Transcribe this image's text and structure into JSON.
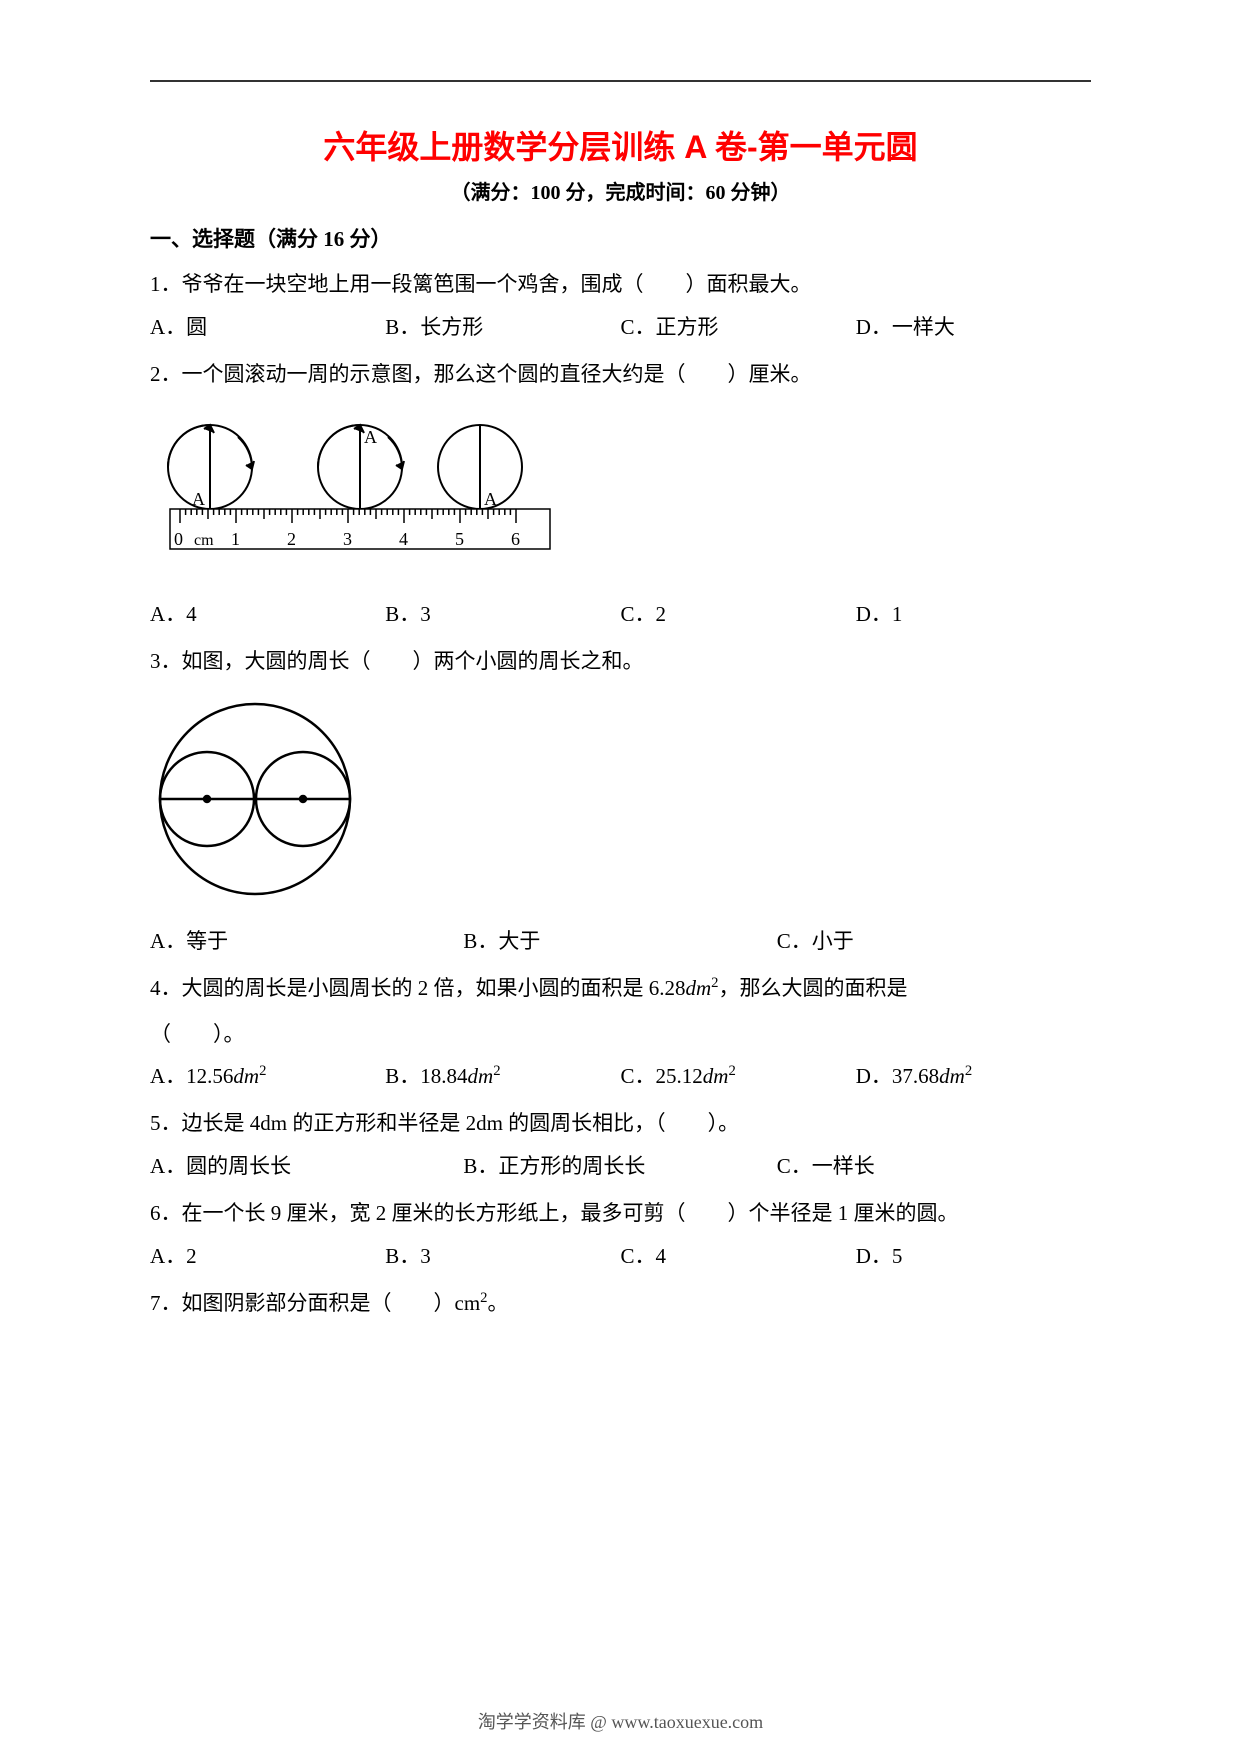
{
  "title": "六年级上册数学分层训练 A 卷-第一单元圆",
  "subtitle": "（满分：100 分，完成时间：60 分钟）",
  "section1": "一、选择题（满分 16 分）",
  "q1": {
    "text": "1．爷爷在一块空地上用一段篱笆围一个鸡舍，围成（　　）面积最大。",
    "a": "A．圆",
    "b": "B．长方形",
    "c": "C．正方形",
    "d": "D．一样大"
  },
  "q2": {
    "text": "2．一个圆滚动一周的示意图，那么这个圆的直径大约是（　　）厘米。",
    "a": "A．4",
    "b": "B．3",
    "c": "C．2",
    "d": "D．1",
    "figure": {
      "ruler_label": "0 cm",
      "ruler_max": 6,
      "circle_label": "A",
      "colors": {
        "stroke": "#000000",
        "bg": "#ffffff"
      }
    }
  },
  "q3": {
    "text": "3．如图，大圆的周长（　　）两个小圆的周长之和。",
    "a": "A．等于",
    "b": "B．大于",
    "c": "C．小于",
    "figure": {
      "stroke": "#000000"
    }
  },
  "q4": {
    "text_pre": "4．大圆的周长是小圆周长的 2 倍，如果小圆的面积是 ",
    "val": "6.28",
    "unit_html": "dm",
    "text_post": "，那么大圆的面积是",
    "blank": "（　　）。",
    "a_n": "12.56",
    "b_n": "18.84",
    "c_n": "25.12",
    "d_n": "37.68"
  },
  "q5": {
    "text": "5．边长是 4dm 的正方形和半径是 2dm 的圆周长相比，（　　）。",
    "a": "A．圆的周长长",
    "b": "B．正方形的周长长",
    "c": "C．一样长"
  },
  "q6": {
    "text": "6．在一个长 9 厘米，宽 2 厘米的长方形纸上，最多可剪（　　）个半径是 1 厘米的圆。",
    "a": "A．2",
    "b": "B．3",
    "c": "C．4",
    "d": "D．5"
  },
  "q7": {
    "text_pre": "7．如图阴影部分面积是（　　）",
    "unit": "cm",
    "text_post": "。"
  },
  "footer": "淘学学资料库 @ www.taoxuexue.com"
}
